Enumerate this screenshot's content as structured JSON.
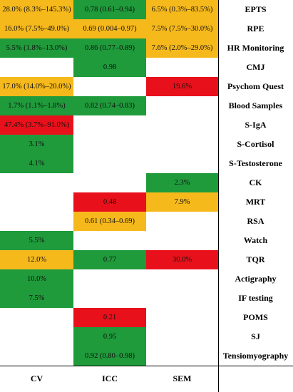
{
  "columns": [
    "CV",
    "ICC",
    "SEM"
  ],
  "rows": [
    {
      "label": "EPTS",
      "cells": [
        {
          "text": "28.0% (8.3%–145.3%)",
          "color": "#f6b91c"
        },
        {
          "text": "0.78 (0.61–0.94)",
          "color": "#1f9b3b"
        },
        {
          "text": "6.5% (0.3%–83.5%)",
          "color": "#f6b91c"
        }
      ]
    },
    {
      "label": "RPE",
      "cells": [
        {
          "text": "16.0% (7.5%–49.0%)",
          "color": "#f6b91c"
        },
        {
          "text": "0.69 (0.004–0.97)",
          "color": "#f6b91c"
        },
        {
          "text": "7.5% (7.5%–30.0%)",
          "color": "#f6b91c"
        }
      ]
    },
    {
      "label": "HR Monitoring",
      "cells": [
        {
          "text": "5.5% (1.8%–13.0%)",
          "color": "#1f9b3b"
        },
        {
          "text": "0.86 (0.77–0.89)",
          "color": "#1f9b3b"
        },
        {
          "text": "7.6% (2.0%–29.0%)",
          "color": "#f6b91c"
        }
      ]
    },
    {
      "label": "CMJ",
      "cells": [
        null,
        {
          "text": "0.98",
          "color": "#1f9b3b"
        },
        null
      ]
    },
    {
      "label": "Psychom Quest",
      "cells": [
        {
          "text": "17.0% (14.0%–20.0%)",
          "color": "#f6b91c"
        },
        null,
        {
          "text": "19.6%",
          "color": "#e8111b"
        }
      ]
    },
    {
      "label": "Blood Samples",
      "cells": [
        {
          "text": "1.7% (1.1%–1.8%)",
          "color": "#1f9b3b"
        },
        {
          "text": "0.82 (0.74–0.83)",
          "color": "#1f9b3b"
        },
        null
      ]
    },
    {
      "label": "S-IgA",
      "cells": [
        {
          "text": "47.4% (3.7%–91.0%)",
          "color": "#e8111b"
        },
        null,
        null
      ]
    },
    {
      "label": "S-Cortisol",
      "cells": [
        {
          "text": "3.1%",
          "color": "#1f9b3b"
        },
        null,
        null
      ]
    },
    {
      "label": "S-Testosterone",
      "cells": [
        {
          "text": "4.1%",
          "color": "#1f9b3b"
        },
        null,
        null
      ]
    },
    {
      "label": "CK",
      "cells": [
        null,
        null,
        {
          "text": "2.3%",
          "color": "#1f9b3b"
        }
      ]
    },
    {
      "label": "MRT",
      "cells": [
        null,
        {
          "text": "0.48",
          "color": "#e8111b"
        },
        {
          "text": "7.9%",
          "color": "#f6b91c"
        }
      ]
    },
    {
      "label": "RSA",
      "cells": [
        null,
        {
          "text": "0.61 (0.34–0.69)",
          "color": "#f6b91c"
        },
        null
      ]
    },
    {
      "label": "Watch",
      "cells": [
        {
          "text": "5.5%",
          "color": "#1f9b3b"
        },
        null,
        null
      ]
    },
    {
      "label": "TQR",
      "cells": [
        {
          "text": "12.0%",
          "color": "#f6b91c"
        },
        {
          "text": "0.77",
          "color": "#1f9b3b"
        },
        {
          "text": "30.0%",
          "color": "#e8111b"
        }
      ]
    },
    {
      "label": "Actigraphy",
      "cells": [
        {
          "text": "10.0%",
          "color": "#1f9b3b"
        },
        null,
        null
      ]
    },
    {
      "label": "IF testing",
      "cells": [
        {
          "text": "7.5%",
          "color": "#1f9b3b"
        },
        null,
        null
      ]
    },
    {
      "label": "POMS",
      "cells": [
        null,
        {
          "text": "0.21",
          "color": "#e8111b"
        },
        null
      ]
    },
    {
      "label": "SJ",
      "cells": [
        null,
        {
          "text": "0.95",
          "color": "#1f9b3b"
        },
        null
      ]
    },
    {
      "label": "Tensiomyography",
      "cells": [
        null,
        {
          "text": "0.92 (0.80–0.98)",
          "color": "#1f9b3b"
        },
        null
      ]
    }
  ]
}
